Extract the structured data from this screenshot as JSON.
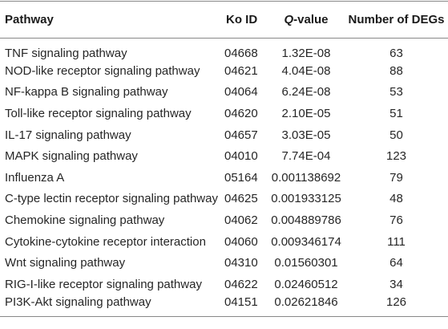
{
  "table": {
    "headers": {
      "pathway": "Pathway",
      "ko_id": "Ko ID",
      "q_prefix": "Q",
      "q_suffix": "-value",
      "degs": "Number of DEGs"
    },
    "rows": [
      {
        "pathway": "TNF signaling pathway",
        "ko_id": "04668",
        "q_value": "1.32E-08",
        "degs": "63"
      },
      {
        "pathway": "NOD-like receptor signaling pathway",
        "ko_id": "04621",
        "q_value": "4.04E-08",
        "degs": "88"
      },
      {
        "pathway": "NF-kappa B signaling pathway",
        "ko_id": "04064",
        "q_value": "6.24E-08",
        "degs": "53"
      },
      {
        "pathway": "Toll-like receptor signaling pathway",
        "ko_id": "04620",
        "q_value": "2.10E-05",
        "degs": "51"
      },
      {
        "pathway": "IL-17 signaling pathway",
        "ko_id": "04657",
        "q_value": "3.03E-05",
        "degs": "50"
      },
      {
        "pathway": "MAPK signaling pathway",
        "ko_id": "04010",
        "q_value": "7.74E-04",
        "degs": "123"
      },
      {
        "pathway": "Influenza A",
        "ko_id": "05164",
        "q_value": "0.001138692",
        "degs": "79"
      },
      {
        "pathway": "C-type lectin receptor signaling pathway",
        "ko_id": "04625",
        "q_value": "0.001933125",
        "degs": "48"
      },
      {
        "pathway": "Chemokine signaling pathway",
        "ko_id": "04062",
        "q_value": "0.004889786",
        "degs": "76"
      },
      {
        "pathway": "Cytokine-cytokine receptor interaction",
        "ko_id": "04060",
        "q_value": "0.009346174",
        "degs": "111"
      },
      {
        "pathway": "Wnt signaling pathway",
        "ko_id": "04310",
        "q_value": "0.01560301",
        "degs": "64"
      },
      {
        "pathway": "RIG-I-like receptor signaling pathway",
        "ko_id": "04622",
        "q_value": "0.02460512",
        "degs": "34"
      },
      {
        "pathway": "PI3K-Akt signaling pathway",
        "ko_id": "04151",
        "q_value": "0.02621846",
        "degs": "126"
      }
    ]
  }
}
